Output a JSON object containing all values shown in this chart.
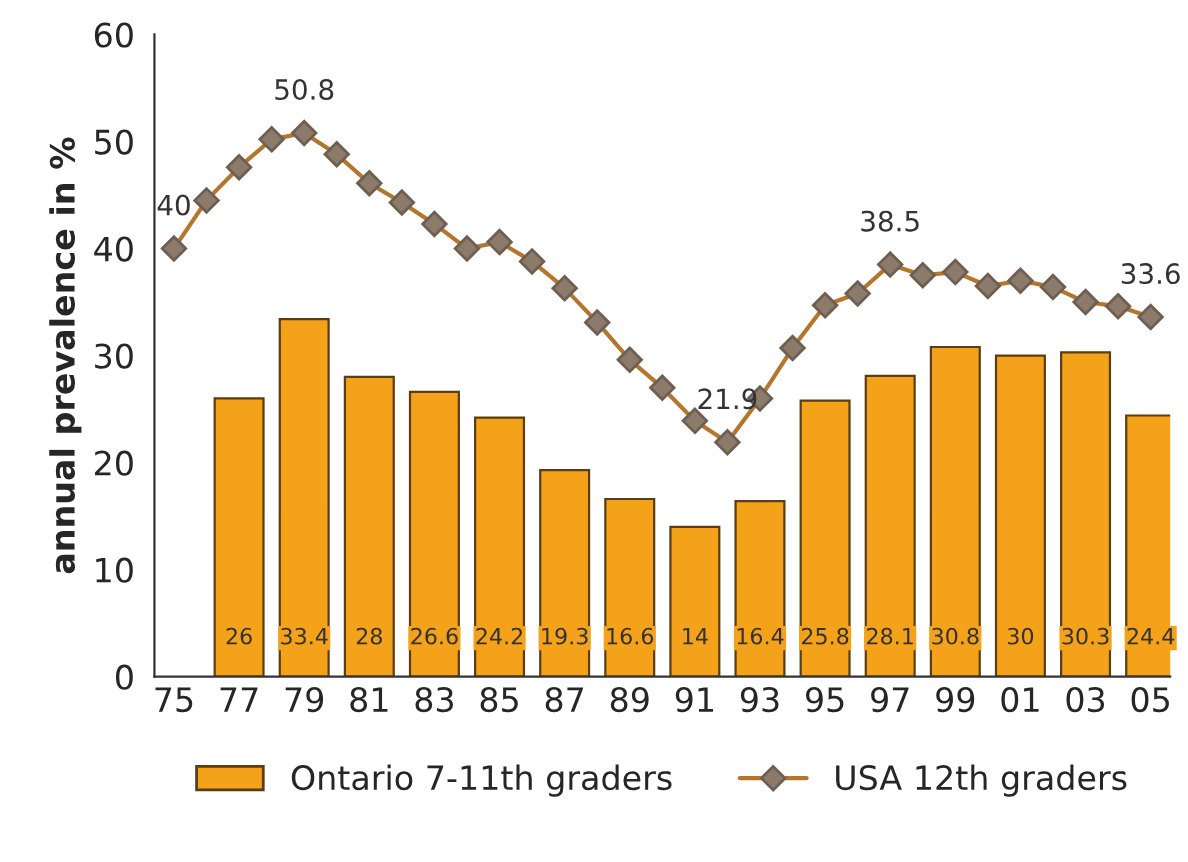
{
  "chart_data": {
    "type": "bar",
    "ylabel": "annual prevalence in %",
    "categories": [
      "75",
      null,
      "77",
      null,
      "79",
      null,
      "81",
      null,
      "83",
      null,
      "85",
      null,
      "87",
      null,
      "89",
      null,
      "91",
      null,
      "93",
      null,
      "95",
      null,
      "97",
      null,
      "99",
      null,
      "01",
      null,
      "03",
      null,
      "05"
    ],
    "series": [
      {
        "name": "Ontario 7-11th graders",
        "color": "#f5a21b",
        "values": [
          null,
          null,
          26,
          null,
          33.4,
          null,
          28,
          null,
          26.6,
          null,
          24.2,
          null,
          19.3,
          null,
          16.6,
          null,
          14,
          null,
          16.4,
          null,
          25.8,
          null,
          28.1,
          null,
          30.8,
          null,
          30,
          null,
          30.3,
          null,
          24.4
        ],
        "value_labels": [
          null,
          null,
          "26",
          null,
          "33.4",
          null,
          "28",
          null,
          "26.6",
          null,
          "24.2",
          null,
          "19.3",
          null,
          "16.6",
          null,
          "14",
          null,
          "16.4",
          null,
          "25.8",
          null,
          "28.1",
          null,
          "30.8",
          null,
          "30",
          null,
          "30.3",
          null,
          "24.4"
        ]
      },
      {
        "name": "USA 12th graders",
        "type": "line",
        "color": "#b5762c",
        "marker": "diamond",
        "values": [
          40,
          44.5,
          47.6,
          50.2,
          50.8,
          48.8,
          46.1,
          44.3,
          42.3,
          40.0,
          40.6,
          38.8,
          36.3,
          33.1,
          29.6,
          27.0,
          23.9,
          21.9,
          26.0,
          30.7,
          34.7,
          35.8,
          38.5,
          37.5,
          37.8,
          36.5,
          37.0,
          36.4,
          35.0,
          34.6,
          33.6
        ],
        "value_labels": [
          "40",
          null,
          null,
          null,
          "50.8",
          null,
          null,
          null,
          null,
          null,
          null,
          null,
          null,
          null,
          null,
          null,
          null,
          "21.9",
          null,
          null,
          null,
          null,
          "38.5",
          null,
          null,
          null,
          null,
          null,
          null,
          null,
          "33.6"
        ]
      }
    ],
    "ylim": [
      0,
      60
    ],
    "yticks": [
      0,
      10,
      20,
      30,
      40,
      50,
      60
    ],
    "grid": false,
    "legend": "bottom"
  }
}
